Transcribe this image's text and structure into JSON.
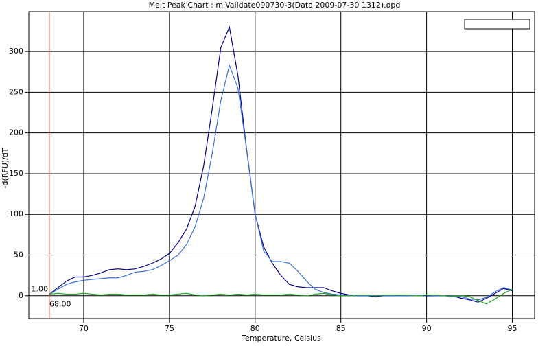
{
  "chart_data": {
    "type": "line",
    "title": "Melt Peak Chart : miValidate090730-3(Data 2009-07-30 1312).opd",
    "xlabel": "Temperature, Celsius",
    "ylabel": "-d(RFU)/dT",
    "x": [
      68,
      68.5,
      69,
      69.5,
      70,
      70.5,
      71,
      71.5,
      72,
      72.5,
      73,
      73.5,
      74,
      74.5,
      75,
      75.5,
      76,
      76.5,
      77,
      77.5,
      78,
      78.5,
      79,
      79.5,
      80,
      80.5,
      81,
      81.5,
      82,
      82.5,
      83,
      83.5,
      84,
      84.5,
      85,
      85.5,
      86,
      86.5,
      87,
      87.5,
      88,
      88.5,
      89,
      89.5,
      90,
      90.5,
      91,
      91.5,
      92,
      92.5,
      93,
      93.5,
      94,
      94.5,
      95
    ],
    "series": [
      {
        "color": "#00008b",
        "values": [
          2,
          10,
          18,
          23,
          23,
          25,
          28,
          32,
          33,
          32,
          33,
          36,
          40,
          45,
          52,
          65,
          82,
          110,
          160,
          230,
          305,
          330,
          270,
          180,
          100,
          60,
          40,
          25,
          14,
          11,
          10,
          10,
          10,
          6,
          3,
          1,
          0,
          0,
          -1,
          0,
          0,
          1,
          1,
          1,
          0,
          0,
          0,
          0,
          -3,
          -5,
          -8,
          -3,
          3,
          9,
          6
        ]
      },
      {
        "color": "#3a6fd8",
        "values": [
          2,
          8,
          14,
          17,
          19,
          20,
          21,
          22,
          22,
          25,
          29,
          30,
          32,
          37,
          43,
          50,
          63,
          85,
          120,
          175,
          240,
          283,
          255,
          180,
          100,
          55,
          42,
          42,
          40,
          30,
          18,
          8,
          4,
          2,
          1,
          0,
          0,
          0,
          0,
          0,
          0,
          0,
          0,
          1,
          1,
          0,
          0,
          0,
          -1,
          -4,
          -5,
          -2,
          5,
          10,
          7
        ]
      },
      {
        "color": "#22aa22",
        "values": [
          2,
          3,
          2,
          2,
          3,
          2,
          1,
          2,
          2,
          1,
          1,
          1,
          2,
          1,
          1,
          2,
          3,
          1,
          0,
          1,
          2,
          1,
          2,
          1,
          2,
          1,
          1,
          1,
          2,
          1,
          0,
          2,
          3,
          1,
          0,
          0,
          1,
          1,
          0,
          1,
          1,
          1,
          1,
          0,
          1,
          1,
          0,
          -1,
          0,
          -1,
          -6,
          -10,
          -4,
          3,
          8
        ]
      }
    ],
    "xlim": [
      66.8,
      96.3
    ],
    "ylim": [
      -28,
      349
    ],
    "xticks": [
      70,
      75,
      80,
      85,
      90,
      95
    ],
    "yticks": [
      0,
      50,
      100,
      150,
      200,
      250,
      300
    ],
    "grid": true,
    "cursor": {
      "x": {
        "value": 68,
        "label": "68.00"
      },
      "y": {
        "value": 1,
        "label": "1.00"
      },
      "color": "#e07030"
    }
  }
}
